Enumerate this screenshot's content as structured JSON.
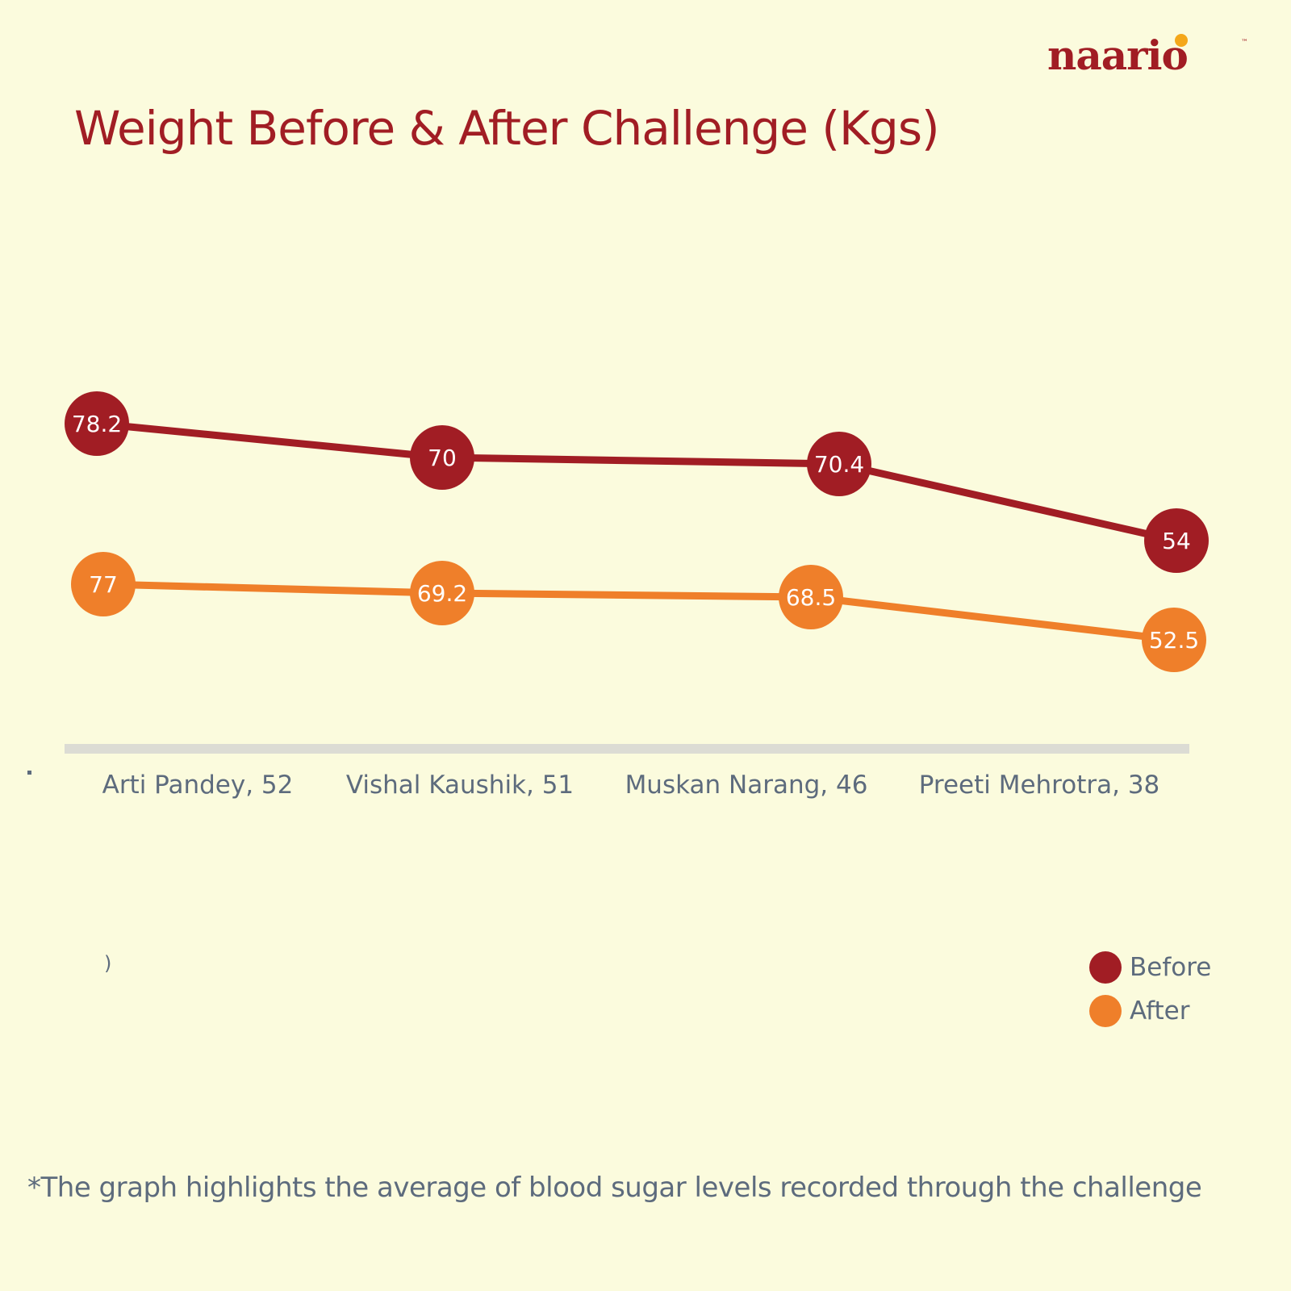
{
  "brand": {
    "name": "naario",
    "tm": "™"
  },
  "colors": {
    "before": "#a11d24",
    "after": "#ef7f2a",
    "axis": "#dcdcd4",
    "text": "#5d6b7d",
    "label_text": "#ffffff"
  },
  "stray_mark": ")",
  "chart_data": {
    "type": "line",
    "title": "Weight Before & After Challenge (Kgs)",
    "categories": [
      "Arti Pandey, 52",
      "Vishal Kaushik, 51",
      "Muskan Narang, 46",
      "Preeti Mehrotra, 38"
    ],
    "series": [
      {
        "name": "Before",
        "values": [
          78.2,
          70,
          70.4,
          54
        ],
        "labels": [
          "78.2",
          "70",
          "70.4",
          "54"
        ]
      },
      {
        "name": "After",
        "values": [
          77,
          69.2,
          68.5,
          52.5
        ],
        "labels": [
          "77",
          "69.2",
          "68.5",
          "52.5"
        ]
      }
    ],
    "xlabel": "",
    "ylabel": "",
    "legend": "bottom-right",
    "grid": false
  },
  "footnote": "*The graph highlights the average of blood sugar levels recorded through the challenge"
}
